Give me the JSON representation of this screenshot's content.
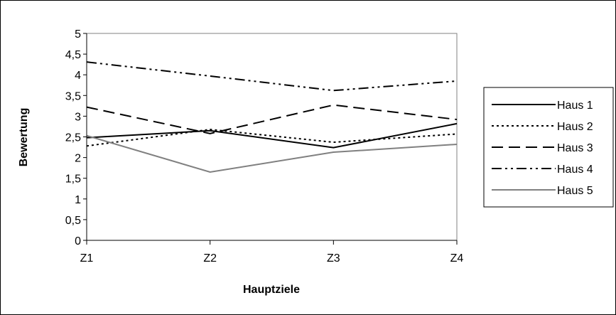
{
  "chart_data": {
    "type": "line",
    "xlabel": "Hauptziele",
    "ylabel": "Bewertung",
    "categories": [
      "Z1",
      "Z2",
      "Z3",
      "Z4"
    ],
    "ylim": [
      0,
      5
    ],
    "yticks": [
      "0",
      "0,5",
      "1",
      "1,5",
      "2",
      "2,5",
      "3",
      "3,5",
      "4",
      "4,5",
      "5"
    ],
    "grid": false,
    "legend_position": "right",
    "series": [
      {
        "name": "Haus 1",
        "values": [
          2.48,
          2.65,
          2.24,
          2.82
        ],
        "color": "#000000",
        "dash": "solid"
      },
      {
        "name": "Haus 2",
        "values": [
          2.28,
          2.68,
          2.37,
          2.57
        ],
        "color": "#000000",
        "dash": "dotted"
      },
      {
        "name": "Haus 3",
        "values": [
          3.22,
          2.58,
          3.27,
          2.92
        ],
        "color": "#000000",
        "dash": "dashed"
      },
      {
        "name": "Haus 4",
        "values": [
          4.31,
          3.97,
          3.62,
          3.85
        ],
        "color": "#000000",
        "dash": "dashdotdot"
      },
      {
        "name": "Haus 5",
        "values": [
          2.53,
          1.65,
          2.13,
          2.32
        ],
        "color": "#808080",
        "dash": "solid"
      }
    ]
  }
}
